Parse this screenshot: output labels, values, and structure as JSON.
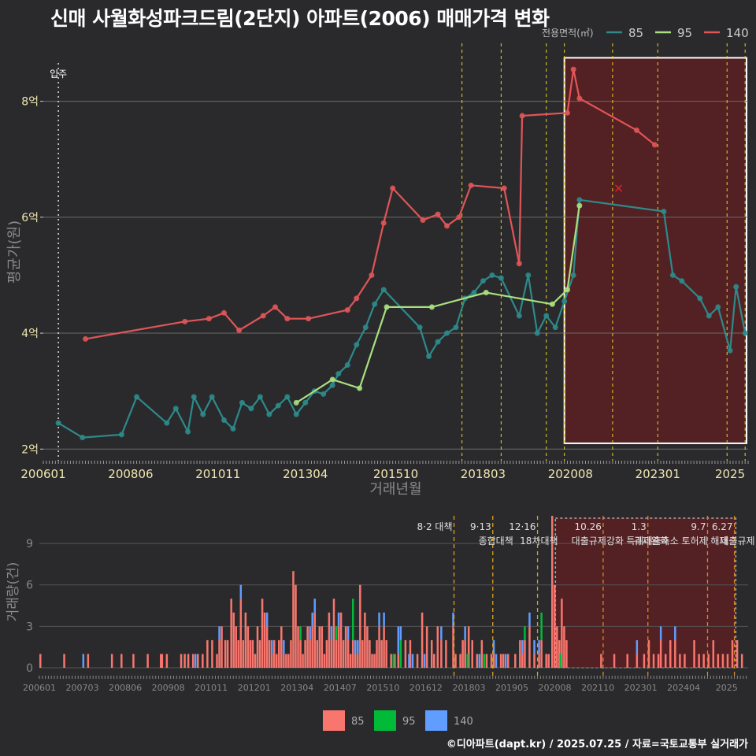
{
  "chart_data": [
    {
      "type": "line",
      "title": "신매 사월화성파크드림(2단지) 아파트(2006) 매매가격 변화",
      "xlabel": "거래년월",
      "ylabel": "평균가(원)",
      "ylim": [
        1.8,
        9.0
      ],
      "xlim": [
        "2006-01",
        "2025-07"
      ],
      "x_ticks": [
        "200601",
        "200806",
        "201011",
        "201304",
        "201510",
        "201803",
        "202008",
        "202301",
        "2025"
      ],
      "y_ticks": [
        {
          "value": 2,
          "label": "2억"
        },
        {
          "value": 4,
          "label": "4억"
        },
        {
          "value": 6,
          "label": "6억"
        },
        {
          "value": 8,
          "label": "8억"
        }
      ],
      "legend_title": "전용면적(㎡)",
      "legend_position": "top-right",
      "grid": true,
      "annotations": [
        {
          "x": "2006-06",
          "label": "입주"
        }
      ],
      "highlight_range": [
        "2020-06",
        "2025-07"
      ],
      "policy_lines": [
        "2017-08",
        "2018-09",
        "2019-12",
        "2020-06",
        "2021-10",
        "2023-01",
        "2024-12",
        "2025-06"
      ],
      "marker_x": {
        "x": "2021-12",
        "y": 6.5
      },
      "series": [
        {
          "name": "85",
          "color": "#2e8a8a",
          "points": [
            [
              "2006-06",
              2.45
            ],
            [
              "2007-02",
              2.2
            ],
            [
              "2008-03",
              2.25
            ],
            [
              "2008-08",
              2.9
            ],
            [
              "2009-06",
              2.45
            ],
            [
              "2009-09",
              2.7
            ],
            [
              "2010-01",
              2.3
            ],
            [
              "2010-03",
              2.9
            ],
            [
              "2010-06",
              2.6
            ],
            [
              "2010-09",
              2.9
            ],
            [
              "2011-01",
              2.5
            ],
            [
              "2011-04",
              2.35
            ],
            [
              "2011-07",
              2.8
            ],
            [
              "2011-10",
              2.7
            ],
            [
              "2012-01",
              2.9
            ],
            [
              "2012-04",
              2.6
            ],
            [
              "2012-07",
              2.75
            ],
            [
              "2012-10",
              2.9
            ],
            [
              "2013-01",
              2.6
            ],
            [
              "2013-04",
              2.8
            ],
            [
              "2013-07",
              3.0
            ],
            [
              "2013-10",
              2.95
            ],
            [
              "2014-01",
              3.1
            ],
            [
              "2014-03",
              3.3
            ],
            [
              "2014-06",
              3.45
            ],
            [
              "2014-09",
              3.8
            ],
            [
              "2014-12",
              4.1
            ],
            [
              "2015-03",
              4.5
            ],
            [
              "2015-06",
              4.75
            ],
            [
              "2016-06",
              4.1
            ],
            [
              "2016-09",
              3.6
            ],
            [
              "2016-12",
              3.85
            ],
            [
              "2017-03",
              4.0
            ],
            [
              "2017-06",
              4.1
            ],
            [
              "2017-09",
              4.6
            ],
            [
              "2017-12",
              4.7
            ],
            [
              "2018-03",
              4.9
            ],
            [
              "2018-06",
              5.0
            ],
            [
              "2018-09",
              4.95
            ],
            [
              "2019-03",
              4.3
            ],
            [
              "2019-06",
              5.0
            ],
            [
              "2019-09",
              4.0
            ],
            [
              "2019-12",
              4.3
            ],
            [
              "2020-03",
              4.1
            ],
            [
              "2020-06",
              4.55
            ],
            [
              "2020-09",
              5.0
            ],
            [
              "2020-11",
              6.3
            ],
            [
              "2023-03",
              6.1
            ],
            [
              "2023-06",
              5.0
            ],
            [
              "2023-09",
              4.9
            ],
            [
              "2024-03",
              4.6
            ],
            [
              "2024-06",
              4.3
            ],
            [
              "2024-09",
              4.45
            ],
            [
              "2025-01",
              3.7
            ],
            [
              "2025-03",
              4.8
            ],
            [
              "2025-06",
              4.0
            ]
          ]
        },
        {
          "name": "95",
          "color": "#a8e080",
          "points": [
            [
              "2013-01",
              2.8
            ],
            [
              "2014-01",
              3.2
            ],
            [
              "2014-10",
              3.05
            ],
            [
              "2015-07",
              4.45
            ],
            [
              "2016-10",
              4.45
            ],
            [
              "2018-04",
              4.7
            ],
            [
              "2020-02",
              4.5
            ],
            [
              "2020-07",
              4.75
            ],
            [
              "2020-11",
              6.2
            ]
          ]
        },
        {
          "name": "140",
          "color": "#e05558",
          "points": [
            [
              "2007-03",
              3.9
            ],
            [
              "2009-12",
              4.2
            ],
            [
              "2010-08",
              4.25
            ],
            [
              "2011-01",
              4.35
            ],
            [
              "2011-06",
              4.05
            ],
            [
              "2012-02",
              4.3
            ],
            [
              "2012-06",
              4.45
            ],
            [
              "2012-10",
              4.25
            ],
            [
              "2013-05",
              4.25
            ],
            [
              "2014-06",
              4.4
            ],
            [
              "2014-09",
              4.6
            ],
            [
              "2015-02",
              5.0
            ],
            [
              "2015-06",
              5.9
            ],
            [
              "2015-09",
              6.5
            ],
            [
              "2016-07",
              5.95
            ],
            [
              "2016-12",
              6.05
            ],
            [
              "2017-03",
              5.85
            ],
            [
              "2017-07",
              6.0
            ],
            [
              "2017-11",
              6.55
            ],
            [
              "2018-10",
              6.5
            ],
            [
              "2019-03",
              5.2
            ],
            [
              "2019-04",
              7.75
            ],
            [
              "2020-07",
              7.8
            ],
            [
              "2020-09",
              8.55
            ],
            [
              "2020-11",
              8.05
            ],
            [
              "2022-06",
              7.5
            ],
            [
              "2022-12",
              7.25
            ]
          ]
        }
      ]
    },
    {
      "type": "bar",
      "ylabel": "거래량(건)",
      "ylim": [
        0,
        11
      ],
      "y_ticks": [
        0,
        3,
        6,
        9
      ],
      "x_ticks": [
        "200601",
        "200703",
        "200806",
        "200908",
        "201011",
        "201201",
        "201304",
        "201407",
        "201510",
        "201612",
        "201803",
        "201905",
        "202008",
        "202110",
        "202301",
        "202404",
        "2025"
      ],
      "legend_position": "bottom",
      "highlight_range": [
        "2020-06",
        "2025-07"
      ],
      "policy_events": [
        {
          "x": "2017-08",
          "date": "8·2 대책",
          "label": ""
        },
        {
          "x": "2018-09",
          "date": "9·13",
          "label": "종합대책"
        },
        {
          "x": "2019-12",
          "date": "12·16",
          "label": "18차대책"
        },
        {
          "x": "2021-10",
          "date": "10.26",
          "label": "대출규제강화"
        },
        {
          "x": "2023-01",
          "date": "1.3",
          "label": "규제완화"
        },
        {
          "x": "2024-09",
          "date": "9.7",
          "label": "특례대출축소 토허제 해제"
        },
        {
          "x": "2025-06",
          "date": "6.27",
          "label": "대출규제"
        }
      ],
      "series": [
        {
          "name": "85",
          "color": "#f8766d"
        },
        {
          "name": "95",
          "color": "#00ba38"
        },
        {
          "name": "140",
          "color": "#619cff"
        }
      ],
      "volume_85": [
        [
          0,
          1
        ],
        [
          20,
          1
        ],
        [
          40,
          1
        ],
        [
          60,
          1
        ],
        [
          68,
          1
        ],
        [
          78,
          1
        ],
        [
          90,
          1
        ],
        [
          101,
          1
        ],
        [
          102,
          1
        ],
        [
          106,
          1
        ],
        [
          118,
          1
        ],
        [
          121,
          1
        ],
        [
          124,
          1
        ],
        [
          128,
          1
        ],
        [
          132,
          1
        ],
        [
          136,
          1
        ],
        [
          140,
          2
        ],
        [
          144,
          2
        ],
        [
          148,
          1
        ],
        [
          150,
          2
        ],
        [
          152,
          3
        ],
        [
          155,
          2
        ],
        [
          157,
          2
        ],
        [
          160,
          5
        ],
        [
          162,
          4
        ],
        [
          164,
          3
        ],
        [
          166,
          2
        ],
        [
          168,
          5
        ],
        [
          170,
          2
        ],
        [
          172,
          4
        ],
        [
          174,
          3
        ],
        [
          176,
          2
        ],
        [
          178,
          2
        ],
        [
          180,
          1
        ],
        [
          182,
          3
        ],
        [
          184,
          2
        ],
        [
          186,
          5
        ],
        [
          188,
          4
        ],
        [
          190,
          3
        ],
        [
          192,
          2
        ],
        [
          194,
          1
        ],
        [
          196,
          2
        ],
        [
          198,
          1
        ],
        [
          200,
          2
        ],
        [
          202,
          3
        ],
        [
          204,
          1
        ],
        [
          206,
          1
        ],
        [
          208,
          1
        ],
        [
          210,
          2
        ],
        [
          212,
          7
        ],
        [
          214,
          6
        ],
        [
          216,
          3
        ],
        [
          218,
          2
        ],
        [
          220,
          1
        ],
        [
          222,
          2
        ],
        [
          224,
          3
        ],
        [
          226,
          2
        ],
        [
          228,
          3
        ],
        [
          230,
          4
        ],
        [
          232,
          2
        ],
        [
          234,
          3
        ],
        [
          236,
          3
        ],
        [
          238,
          1
        ],
        [
          240,
          2
        ],
        [
          242,
          4
        ],
        [
          244,
          2
        ],
        [
          246,
          5
        ],
        [
          248,
          2
        ],
        [
          250,
          3
        ],
        [
          252,
          4
        ],
        [
          254,
          2
        ],
        [
          256,
          3
        ],
        [
          258,
          2
        ],
        [
          260,
          1
        ],
        [
          262,
          2
        ],
        [
          264,
          1
        ],
        [
          266,
          1
        ],
        [
          268,
          6
        ],
        [
          270,
          2
        ],
        [
          272,
          4
        ],
        [
          274,
          3
        ],
        [
          276,
          2
        ],
        [
          278,
          1
        ],
        [
          280,
          1
        ],
        [
          282,
          2
        ],
        [
          284,
          3
        ],
        [
          286,
          2
        ],
        [
          288,
          3
        ],
        [
          290,
          2
        ],
        [
          294,
          1
        ],
        [
          297,
          1
        ],
        [
          300,
          1
        ],
        [
          306,
          2
        ],
        [
          310,
          2
        ],
        [
          316,
          1
        ],
        [
          320,
          4
        ],
        [
          324,
          3
        ],
        [
          328,
          2
        ],
        [
          330,
          1
        ],
        [
          333,
          3
        ],
        [
          336,
          2
        ],
        [
          340,
          2
        ],
        [
          346,
          3
        ],
        [
          348,
          1
        ],
        [
          352,
          1
        ],
        [
          354,
          2
        ],
        [
          356,
          2
        ],
        [
          359,
          3
        ],
        [
          362,
          2
        ],
        [
          366,
          1
        ],
        [
          370,
          2
        ],
        [
          374,
          1
        ],
        [
          378,
          1
        ],
        [
          380,
          1
        ],
        [
          386,
          1
        ],
        [
          388,
          1
        ],
        [
          392,
          1
        ],
        [
          398,
          1
        ],
        [
          402,
          2
        ],
        [
          404,
          1
        ],
        [
          406,
          2
        ],
        [
          410,
          3
        ],
        [
          414,
          1
        ],
        [
          418,
          1
        ],
        [
          420,
          2
        ],
        [
          424,
          1
        ],
        [
          426,
          1
        ],
        [
          429,
          11
        ],
        [
          431,
          6
        ],
        [
          433,
          3
        ],
        [
          435,
          2
        ],
        [
          437,
          5
        ],
        [
          439,
          3
        ],
        [
          441,
          2
        ],
        [
          470,
          1
        ],
        [
          481,
          1
        ],
        [
          492,
          1
        ],
        [
          500,
          1
        ],
        [
          506,
          1
        ],
        [
          510,
          2
        ],
        [
          514,
          1
        ],
        [
          518,
          1
        ],
        [
          520,
          2
        ],
        [
          524,
          1
        ],
        [
          528,
          2
        ],
        [
          532,
          2
        ],
        [
          536,
          1
        ],
        [
          540,
          1
        ],
        [
          548,
          2
        ],
        [
          552,
          1
        ],
        [
          556,
          1
        ],
        [
          560,
          1
        ],
        [
          564,
          2
        ],
        [
          568,
          1
        ],
        [
          572,
          1
        ],
        [
          576,
          1
        ],
        [
          580,
          2
        ],
        [
          584,
          2
        ],
        [
          588,
          1
        ]
      ],
      "volume_95": [
        [
          218,
          1
        ],
        [
          248,
          1
        ],
        [
          262,
          3
        ],
        [
          296,
          1
        ],
        [
          302,
          2
        ],
        [
          358,
          1
        ],
        [
          372,
          1
        ],
        [
          406,
          1
        ],
        [
          420,
          2
        ],
        [
          436,
          1
        ]
      ],
      "volume_140": [
        [
          36,
          1
        ],
        [
          130,
          1
        ],
        [
          150,
          1
        ],
        [
          168,
          1
        ],
        [
          190,
          1
        ],
        [
          194,
          1
        ],
        [
          204,
          1
        ],
        [
          226,
          1
        ],
        [
          228,
          1
        ],
        [
          230,
          1
        ],
        [
          244,
          1
        ],
        [
          250,
          1
        ],
        [
          258,
          1
        ],
        [
          264,
          1
        ],
        [
          266,
          1
        ],
        [
          284,
          1
        ],
        [
          288,
          1
        ],
        [
          300,
          2
        ],
        [
          302,
          1
        ],
        [
          309,
          1
        ],
        [
          312,
          1
        ],
        [
          322,
          1
        ],
        [
          336,
          1
        ],
        [
          346,
          1
        ],
        [
          356,
          1
        ],
        [
          368,
          1
        ],
        [
          380,
          1
        ],
        [
          382,
          1
        ],
        [
          390,
          1
        ],
        [
          404,
          1
        ],
        [
          410,
          1
        ],
        [
          414,
          1
        ],
        [
          418,
          1
        ],
        [
          500,
          1
        ],
        [
          520,
          1
        ],
        [
          532,
          1
        ]
      ]
    }
  ],
  "footer": "©디아파트(dapt.kr) / 2025.07.25 / 자료=국토교통부 실거래가"
}
